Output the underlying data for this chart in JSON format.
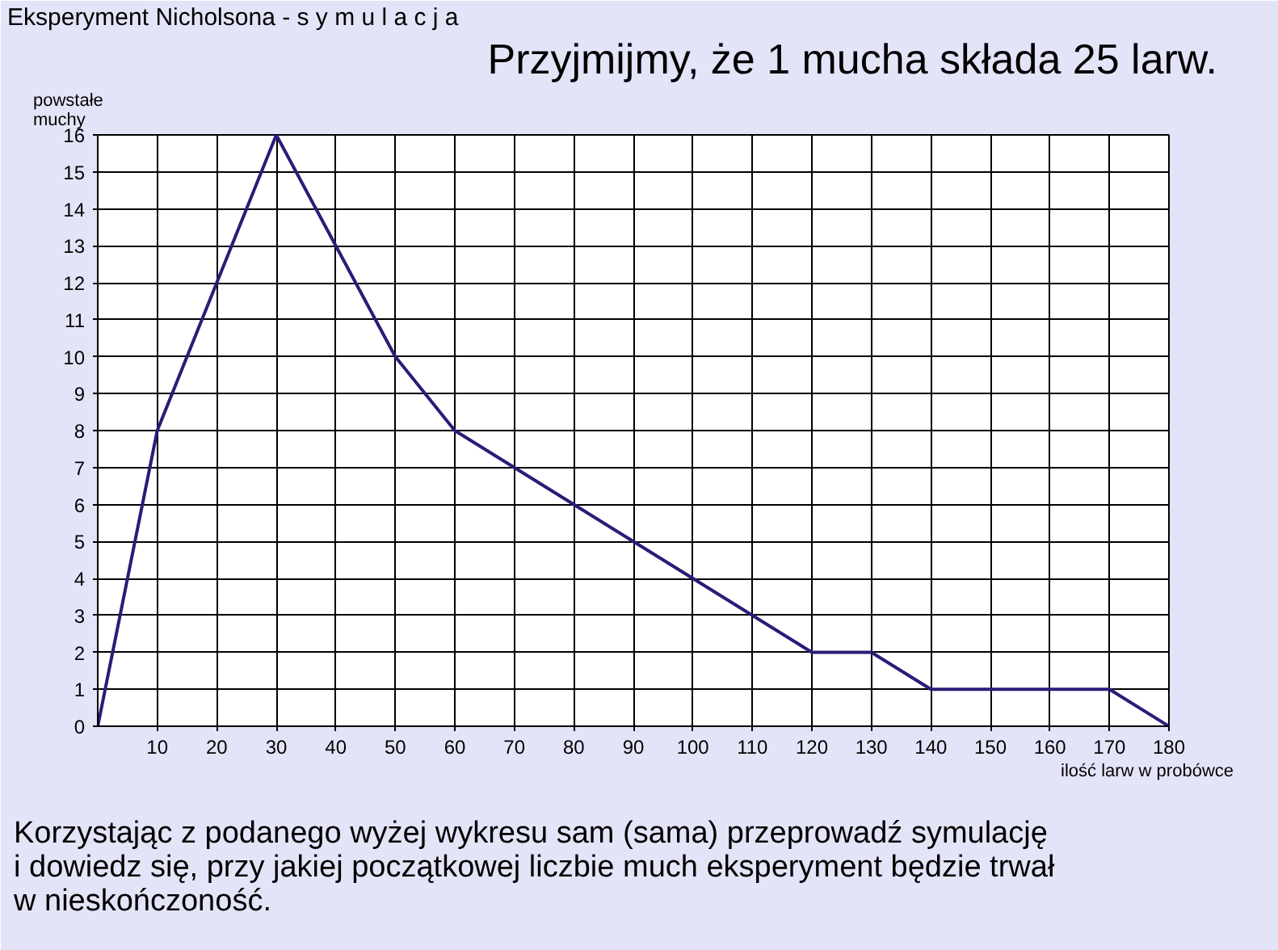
{
  "chart_data": {
    "type": "line",
    "title": "Eksperyment Nicholsona - s y m u l a c j a",
    "subtitle": "Przyjmijmy, że 1 mucha składa 25 larw.",
    "xlabel": "ilość larw w probówce",
    "ylabel": "powstałe muchy",
    "x": [
      0,
      10,
      20,
      30,
      40,
      50,
      60,
      70,
      80,
      90,
      100,
      110,
      120,
      130,
      140,
      150,
      160,
      170,
      180
    ],
    "series": [
      {
        "color": "#2e1a78",
        "values": [
          0,
          8,
          12,
          16,
          13,
          10,
          8,
          7,
          6,
          5,
          4,
          3,
          2,
          2,
          1,
          1,
          1,
          1,
          0
        ]
      }
    ],
    "xlim": [
      0,
      180
    ],
    "ylim": [
      0,
      16
    ],
    "xticks": [
      10,
      20,
      30,
      40,
      50,
      60,
      70,
      80,
      90,
      100,
      110,
      120,
      130,
      140,
      150,
      160,
      170,
      180
    ],
    "yticks": [
      0,
      1,
      2,
      3,
      4,
      5,
      6,
      7,
      8,
      9,
      10,
      11,
      12,
      13,
      14,
      15,
      16
    ],
    "grid": true,
    "marker": "none",
    "line_style": "solid",
    "annotations": [
      "Korzystając z podanego wyżej wykresu sam (sama) przeprowadź symulację\ni dowiedz się, przy jakiej początkowej liczbie much eksperyment będzie trwał\nw nieskończoność."
    ]
  }
}
